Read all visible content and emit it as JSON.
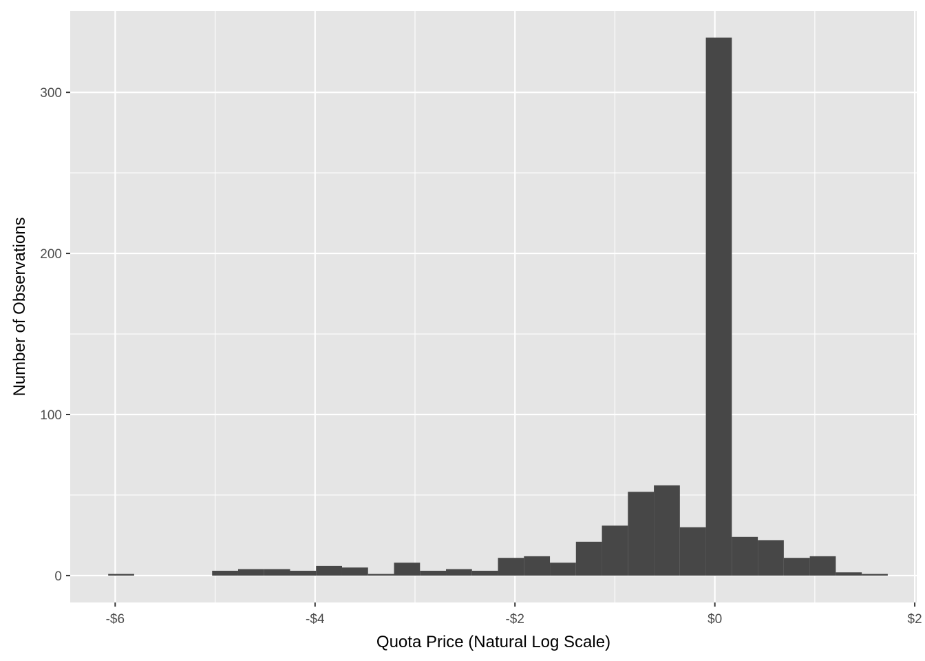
{
  "chart_data": {
    "type": "bar",
    "subtype": "histogram",
    "xlabel": "Quota Price (Natural Log Scale)",
    "ylabel": "Number of Observations",
    "xlim": [
      -6.45,
      2.02
    ],
    "ylim": [
      -16.7,
      350.5
    ],
    "x_ticks": [
      -6,
      -4,
      -2,
      0,
      2
    ],
    "x_tick_labels": [
      "-$6",
      "-$4",
      "-$2",
      "$0",
      "$2"
    ],
    "y_ticks": [
      0,
      100,
      200,
      300
    ],
    "y_tick_labels": [
      "0",
      "100",
      "200",
      "300"
    ],
    "grid": true,
    "legend": "none",
    "colors": {
      "bar": "#474747",
      "panel": "#E5E5E5",
      "grid": "#FFFFFF"
    },
    "bins": [
      {
        "x0": -6.07,
        "x1": -5.81,
        "count": 1
      },
      {
        "x0": -5.81,
        "x1": -5.55,
        "count": 0
      },
      {
        "x0": -5.55,
        "x1": -5.29,
        "count": 0
      },
      {
        "x0": -5.29,
        "x1": -5.03,
        "count": 0
      },
      {
        "x0": -5.03,
        "x1": -4.77,
        "count": 3
      },
      {
        "x0": -4.77,
        "x1": -4.51,
        "count": 4
      },
      {
        "x0": -4.51,
        "x1": -4.25,
        "count": 4
      },
      {
        "x0": -4.25,
        "x1": -3.99,
        "count": 3
      },
      {
        "x0": -3.99,
        "x1": -3.73,
        "count": 6
      },
      {
        "x0": -3.73,
        "x1": -3.47,
        "count": 5
      },
      {
        "x0": -3.47,
        "x1": -3.21,
        "count": 1
      },
      {
        "x0": -3.21,
        "x1": -2.95,
        "count": 8
      },
      {
        "x0": -2.95,
        "x1": -2.69,
        "count": 3
      },
      {
        "x0": -2.69,
        "x1": -2.43,
        "count": 4
      },
      {
        "x0": -2.43,
        "x1": -2.17,
        "count": 3
      },
      {
        "x0": -2.17,
        "x1": -1.91,
        "count": 11
      },
      {
        "x0": -1.91,
        "x1": -1.65,
        "count": 12
      },
      {
        "x0": -1.65,
        "x1": -1.39,
        "count": 8
      },
      {
        "x0": -1.39,
        "x1": -1.13,
        "count": 21
      },
      {
        "x0": -1.13,
        "x1": -0.87,
        "count": 31
      },
      {
        "x0": -0.87,
        "x1": -0.61,
        "count": 52
      },
      {
        "x0": -0.61,
        "x1": -0.35,
        "count": 56
      },
      {
        "x0": -0.35,
        "x1": -0.09,
        "count": 30
      },
      {
        "x0": -0.09,
        "x1": 0.17,
        "count": 334
      },
      {
        "x0": 0.17,
        "x1": 0.43,
        "count": 24
      },
      {
        "x0": 0.43,
        "x1": 0.69,
        "count": 22
      },
      {
        "x0": 0.69,
        "x1": 0.95,
        "count": 11
      },
      {
        "x0": 0.95,
        "x1": 1.21,
        "count": 12
      },
      {
        "x0": 1.21,
        "x1": 1.47,
        "count": 2
      },
      {
        "x0": 1.47,
        "x1": 1.73,
        "count": 1
      }
    ]
  }
}
